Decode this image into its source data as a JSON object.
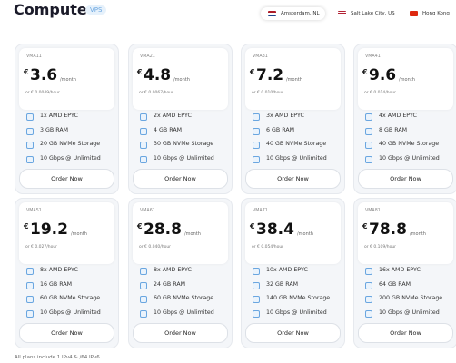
{
  "header": {
    "title": "Compute",
    "badge": "VPS",
    "locations": [
      "Amsterdam, NL",
      "Salt Lake City, US",
      "Hong Kong"
    ]
  },
  "plans": [
    {
      "name": "VMA11",
      "currency": "€",
      "price": "3.6",
      "period": "/month",
      "hourly": "or € 0.0049/hour",
      "features": [
        "1x AMD EPYC",
        "3 GB RAM",
        "20 GB NVMe Storage",
        "10 Gbps @ Unlimited"
      ],
      "button": "Order Now"
    },
    {
      "name": "VMA21",
      "currency": "€",
      "price": "4.8",
      "period": "/month",
      "hourly": "or € 0.0067/hour",
      "features": [
        "2x AMD EPYC",
        "4 GB RAM",
        "30 GB NVMe Storage",
        "10 Gbps @ Unlimited"
      ],
      "button": "Order Now"
    },
    {
      "name": "VMA31",
      "currency": "€",
      "price": "7.2",
      "period": "/month",
      "hourly": "or € 0.010/hour",
      "features": [
        "3x AMD EPYC",
        "6 GB RAM",
        "40 GB NVMe Storage",
        "10 Gbps @ Unlimited"
      ],
      "button": "Order Now"
    },
    {
      "name": "VMA41",
      "currency": "€",
      "price": "9.6",
      "period": "/month",
      "hourly": "or € 0.014/hour",
      "features": [
        "4x AMD EPYC",
        "8 GB RAM",
        "40 GB NVMe Storage",
        "10 Gbps @ Unlimited"
      ],
      "button": "Order Now"
    },
    {
      "name": "VMA51",
      "currency": "€",
      "price": "19.2",
      "period": "/month",
      "hourly": "or € 0.027/hour",
      "features": [
        "8x AMD EPYC",
        "16 GB RAM",
        "60 GB NVMe Storage",
        "10 Gbps @ Unlimited"
      ],
      "button": "Order Now"
    },
    {
      "name": "VMA61",
      "currency": "€",
      "price": "28.8",
      "period": "/month",
      "hourly": "or € 0.040/hour",
      "features": [
        "8x AMD EPYC",
        "24 GB RAM",
        "60 GB NVMe Storage",
        "10 Gbps @ Unlimited"
      ],
      "button": "Order Now"
    },
    {
      "name": "VMA71",
      "currency": "€",
      "price": "38.4",
      "period": "/month",
      "hourly": "or € 0.054/hour",
      "features": [
        "10x AMD EPYC",
        "32 GB RAM",
        "140 GB NVMe Storage",
        "10 Gbps @ Unlimited"
      ],
      "button": "Order Now"
    },
    {
      "name": "VMA81",
      "currency": "€",
      "price": "78.8",
      "period": "/month",
      "hourly": "or € 0.109/hour",
      "features": [
        "16x AMD EPYC",
        "64 GB RAM",
        "200 GB NVMe Storage",
        "10 Gbps @ Unlimited"
      ],
      "button": "Order Now"
    }
  ],
  "footer": "All plans include 1 IPv4 & /64 IPv6"
}
